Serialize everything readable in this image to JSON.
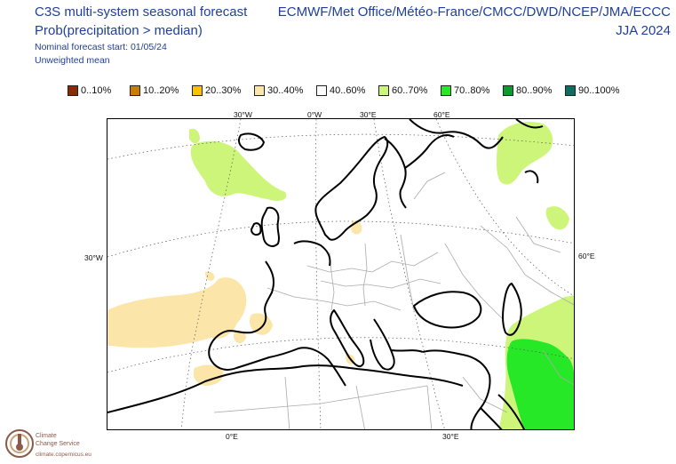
{
  "header": {
    "title_line1": "C3S multi-system seasonal forecast",
    "title_line2": "Prob(precipitation > median)",
    "subtitle_line1": "Nominal forecast start: 01/05/24",
    "subtitle_line2": "Unweighted mean",
    "right_line1": "ECMWF/Met Office/Météo-France/CMCC/DWD/NCEP/JMA/ECCC",
    "right_line2": "JJA 2024"
  },
  "legend": [
    {
      "label": "0..10%",
      "color": "#8b2a00"
    },
    {
      "label": "10..20%",
      "color": "#c87d00"
    },
    {
      "label": "20..30%",
      "color": "#ffc000"
    },
    {
      "label": "30..40%",
      "color": "#fce5a8"
    },
    {
      "label": "40..60%",
      "color": "#ffffff"
    },
    {
      "label": "60..70%",
      "color": "#ccf57a"
    },
    {
      "label": "70..80%",
      "color": "#26e826"
    },
    {
      "label": "80..90%",
      "color": "#0a9a30"
    },
    {
      "label": "90..100%",
      "color": "#0b6e5f"
    }
  ],
  "axis_labels": {
    "top": [
      "30°W",
      "0°W",
      "30°E",
      "60°E"
    ],
    "left": [
      "30°W"
    ],
    "right": [
      "60°E"
    ],
    "bottom": [
      "0°E",
      "30°E"
    ]
  },
  "colors": {
    "text": "#1f3f9a",
    "dry_30_40": "#fce5a8",
    "wet_60_70": "#ccf57a",
    "wet_70_80": "#26e826",
    "coast": "#000000",
    "border": "#aaaaaa",
    "grid": "#555555"
  },
  "logo": {
    "name_line1": "Climate",
    "name_line2": "Change Service",
    "url": "climate.copernicus.eu"
  }
}
